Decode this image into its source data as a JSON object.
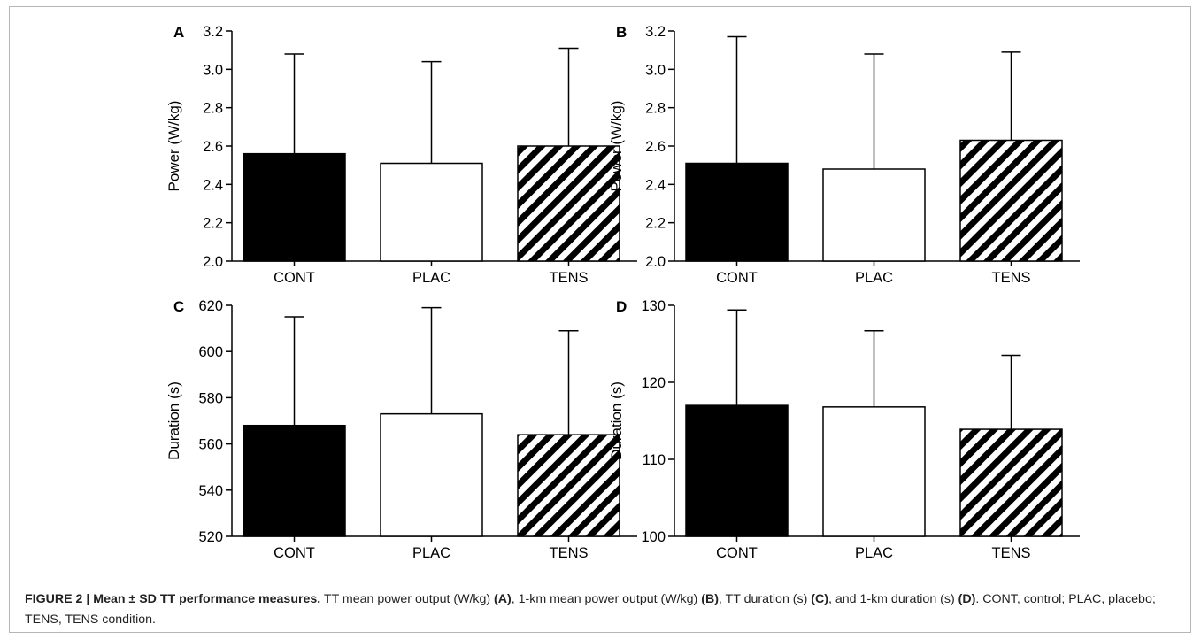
{
  "chart_data": [
    {
      "panel": "A",
      "type": "bar",
      "categories": [
        "CONT",
        "PLAC",
        "TENS"
      ],
      "values": [
        2.56,
        2.51,
        2.6
      ],
      "error": [
        0.52,
        0.53,
        0.51
      ],
      "ylabel": "Power (W/kg)",
      "ylim": [
        2.0,
        3.2
      ],
      "yticks": [
        "2.0",
        "2.2",
        "2.4",
        "2.6",
        "2.8",
        "3.0",
        "3.2"
      ]
    },
    {
      "panel": "B",
      "type": "bar",
      "categories": [
        "CONT",
        "PLAC",
        "TENS"
      ],
      "values": [
        2.51,
        2.48,
        2.63
      ],
      "error": [
        0.66,
        0.6,
        0.46
      ],
      "ylabel": "Power (W/kg)",
      "ylim": [
        2.0,
        3.2
      ],
      "yticks": [
        "2.0",
        "2.2",
        "2.4",
        "2.6",
        "2.8",
        "3.0",
        "3.2"
      ]
    },
    {
      "panel": "C",
      "type": "bar",
      "categories": [
        "CONT",
        "PLAC",
        "TENS"
      ],
      "values": [
        568,
        573,
        564
      ],
      "error": [
        47,
        46,
        45
      ],
      "ylabel": "Duration (s)",
      "ylim": [
        520,
        620
      ],
      "yticks": [
        "520",
        "540",
        "560",
        "580",
        "600",
        "620"
      ]
    },
    {
      "panel": "D",
      "type": "bar",
      "categories": [
        "CONT",
        "PLAC",
        "TENS"
      ],
      "values": [
        117.0,
        116.8,
        113.9
      ],
      "error": [
        12.4,
        9.9,
        9.6
      ],
      "ylabel": "Duration (s)",
      "ylim": [
        100,
        130
      ],
      "yticks": [
        "100",
        "110",
        "120",
        "130"
      ]
    }
  ],
  "bar_styles": [
    "solid-black",
    "white",
    "diagonal-hatch"
  ],
  "caption": {
    "figure_label": "FIGURE 2 | Mean ± SD TT performance measures.",
    "text_1": " TT mean power output (W/kg) ",
    "ref_a": "(A)",
    "text_2": ", 1-km mean power output (W/kg) ",
    "ref_b": "(B)",
    "text_3": ", TT duration (s) ",
    "ref_c": "(C)",
    "text_4": ", and 1-km duration (s) ",
    "ref_d": "(D)",
    "text_5": ". CONT, control; PLAC, placebo; TENS, TENS condition."
  }
}
